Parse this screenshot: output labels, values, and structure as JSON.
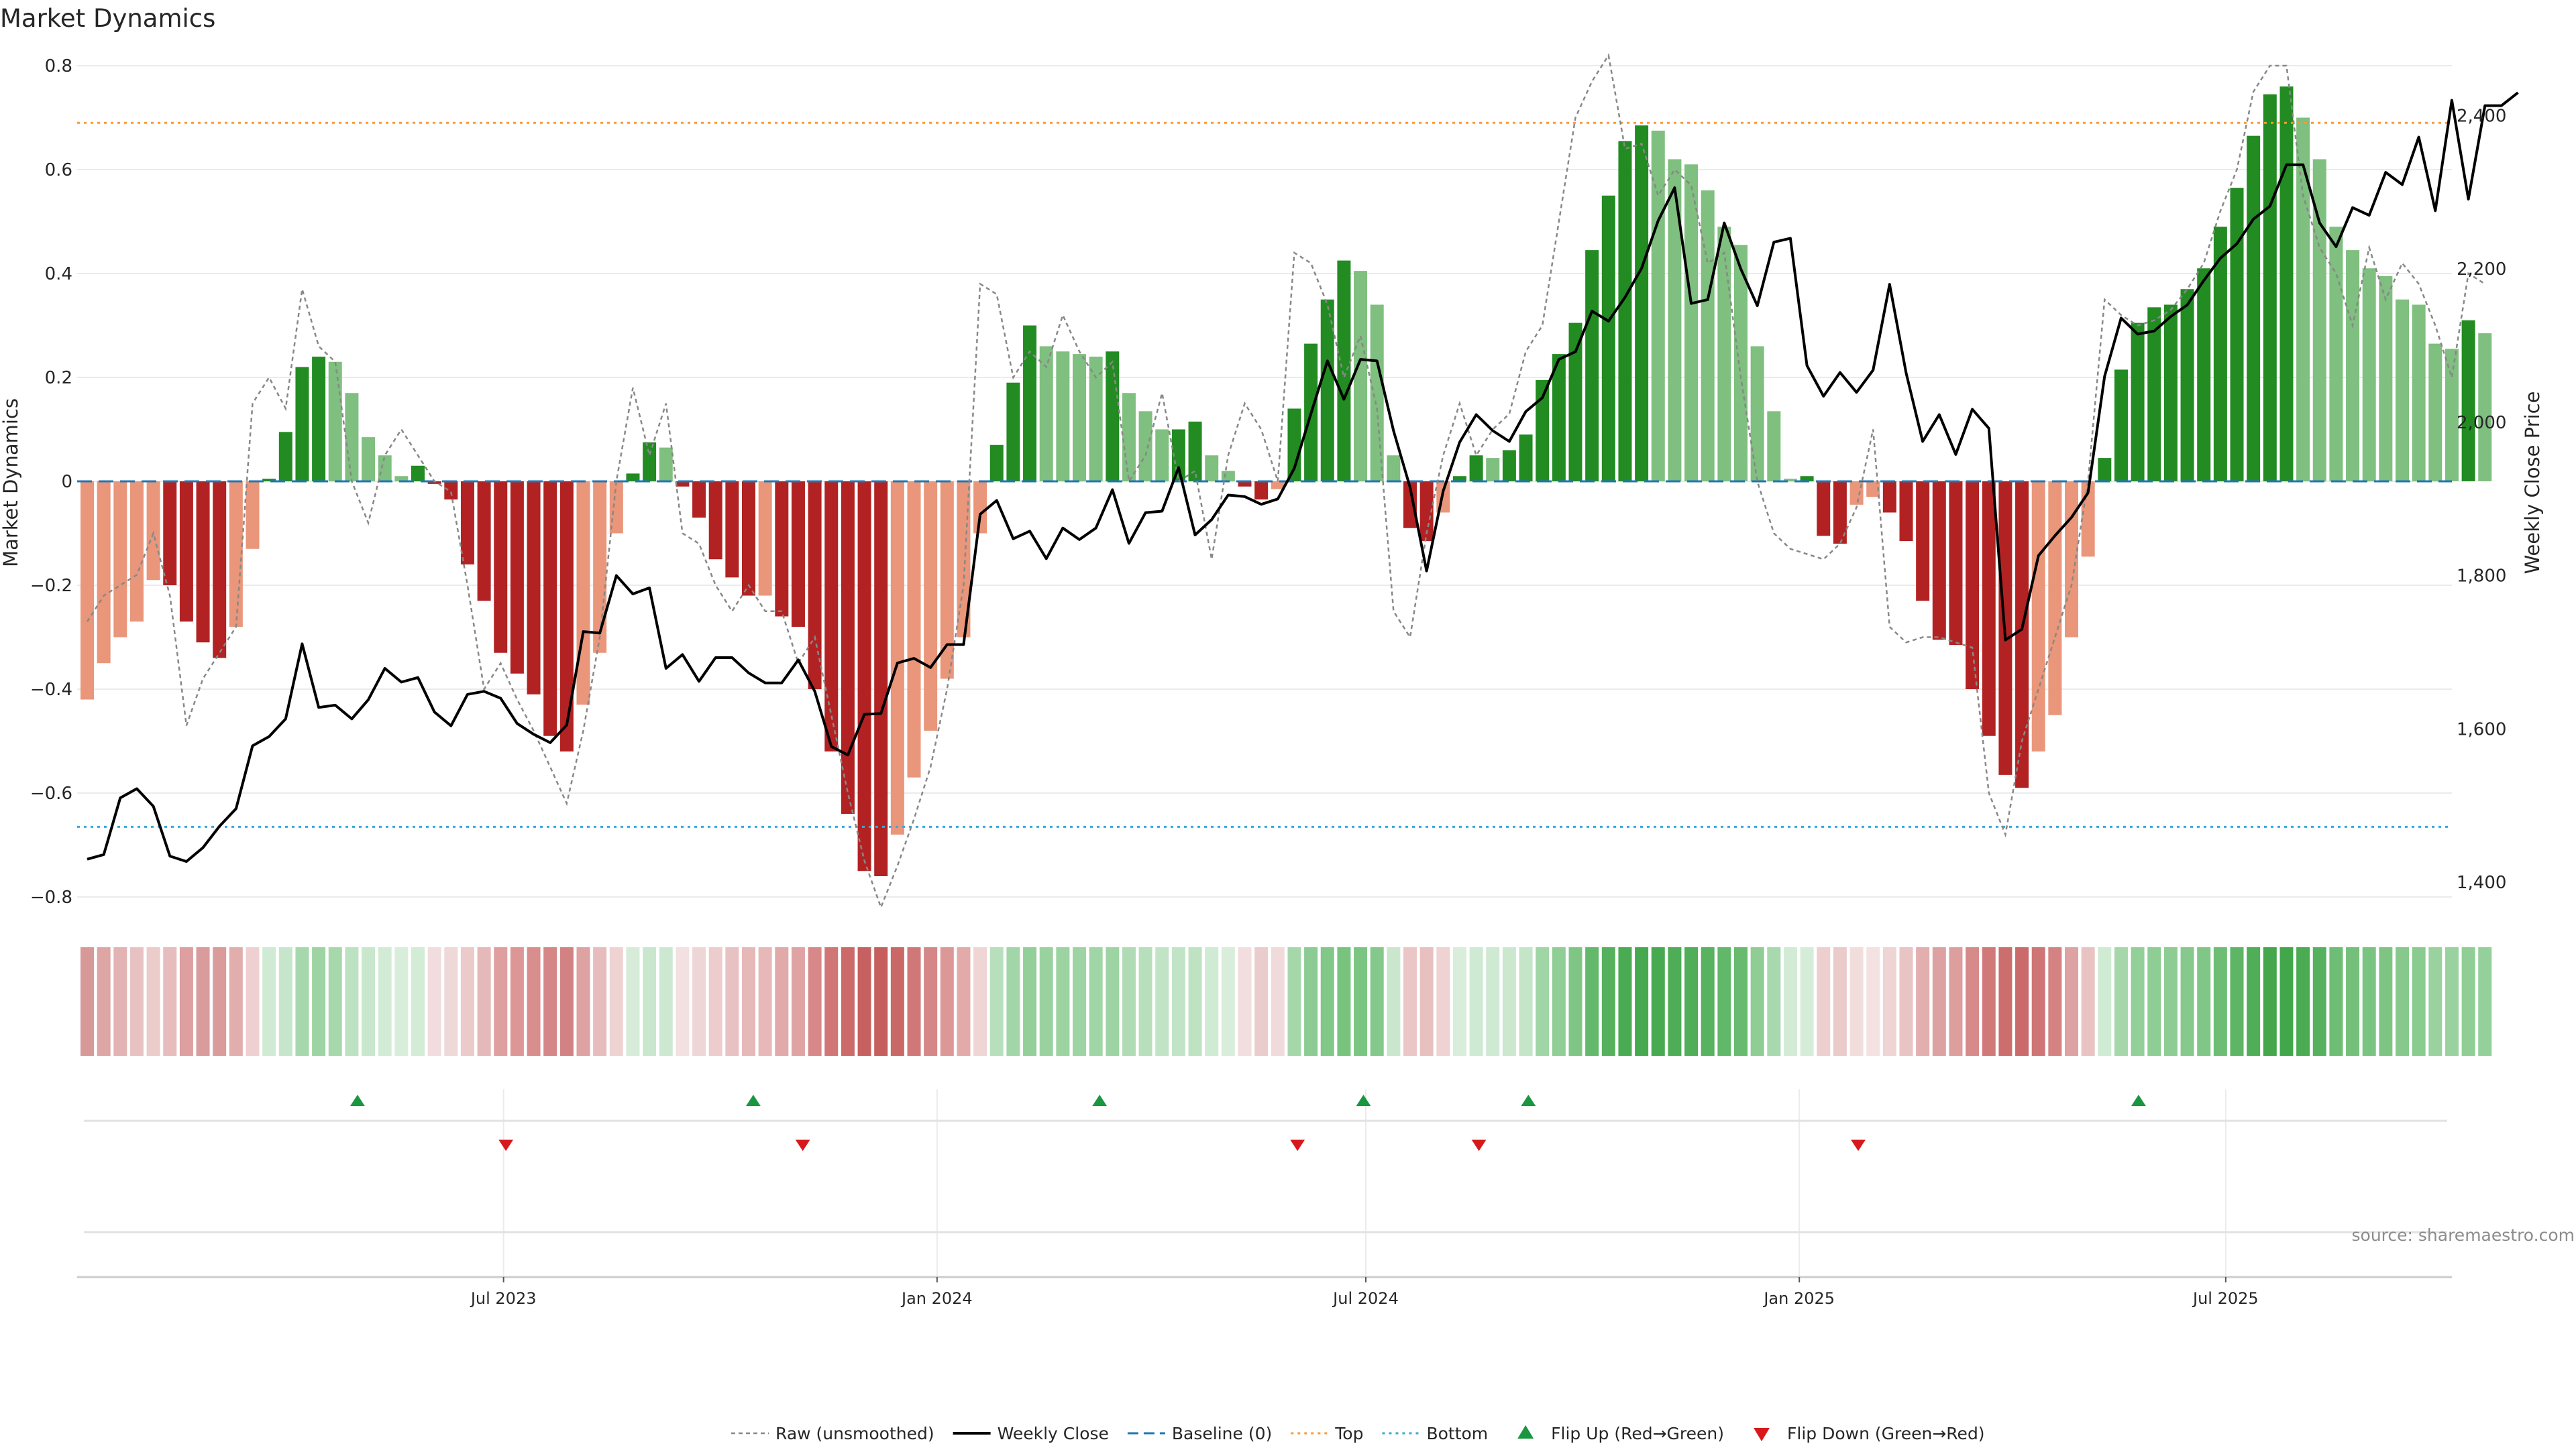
{
  "chart_data": {
    "type": "bar",
    "title": "Market Dynamics",
    "ylabel": "Market Dynamics",
    "y2label": "Weekly Close Price",
    "ylim": [
      -0.83,
      0.83
    ],
    "y2lim": [
      1370,
      2440
    ],
    "yticks": [
      0.8,
      0.6,
      0.4,
      0.2,
      0,
      -0.2,
      -0.4,
      -0.6,
      -0.8
    ],
    "ytick_labels": [
      "0.8",
      "0.6",
      "0.4",
      "0.2",
      "0",
      "−0.2",
      "−0.4",
      "−0.6",
      "−0.8"
    ],
    "y2ticks": [
      2400,
      2200,
      2000,
      1800,
      1600,
      1400
    ],
    "y2tick_labels": [
      "2,400",
      "2,200",
      "2,000",
      "1,800",
      "1,600",
      "1,400"
    ],
    "x_start": "2023-01-01",
    "x_end": "2025-10-05",
    "x_ticks": [
      {
        "date": "2023-07-01",
        "label": "Jul 2023"
      },
      {
        "date": "2024-01-01",
        "label": "Jan 2024"
      },
      {
        "date": "2024-07-01",
        "label": "Jul 2024"
      },
      {
        "date": "2025-01-01",
        "label": "Jan 2025"
      },
      {
        "date": "2025-07-01",
        "label": "Jul 2025"
      }
    ],
    "grid": true,
    "legend_placement": "bottom-center",
    "top_line": 0.69,
    "bottom_line": -0.665,
    "colors": {
      "strong_green": "#228b22",
      "light_green": "#7fbf7f",
      "strong_red": "#b22222",
      "light_red": "#e9967a",
      "weekly_close": "#000000",
      "raw": "#888888",
      "baseline": "#1f77b4",
      "top": "#ff9933",
      "bottom": "#33aadd",
      "flip_up": "#1a9641",
      "flip_down": "#d7191c"
    },
    "values": [
      -0.42,
      -0.35,
      -0.3,
      -0.27,
      -0.19,
      -0.2,
      -0.27,
      -0.31,
      -0.34,
      -0.28,
      -0.13,
      0.005,
      0.095,
      0.22,
      0.24,
      0.23,
      0.17,
      0.085,
      0.05,
      0.01,
      0.03,
      -0.005,
      -0.035,
      -0.16,
      -0.23,
      -0.33,
      -0.37,
      -0.41,
      -0.49,
      -0.52,
      -0.43,
      -0.33,
      -0.1,
      0.015,
      0.075,
      0.065,
      -0.01,
      -0.07,
      -0.15,
      -0.185,
      -0.22,
      -0.22,
      -0.26,
      -0.28,
      -0.4,
      -0.52,
      -0.64,
      -0.75,
      -0.76,
      -0.68,
      -0.57,
      -0.48,
      -0.38,
      -0.3,
      -0.1,
      0.07,
      0.19,
      0.3,
      0.26,
      0.25,
      0.245,
      0.24,
      0.25,
      0.17,
      0.135,
      0.1,
      0.1,
      0.115,
      0.05,
      0.02,
      -0.01,
      -0.035,
      -0.015,
      0.14,
      0.265,
      0.35,
      0.425,
      0.405,
      0.34,
      0.05,
      -0.09,
      -0.115,
      -0.06,
      0.01,
      0.05,
      0.045,
      0.06,
      0.09,
      0.195,
      0.245,
      0.305,
      0.445,
      0.55,
      0.655,
      0.685,
      0.675,
      0.62,
      0.61,
      0.56,
      0.49,
      0.455,
      0.26,
      0.135,
      0.005,
      0.01,
      -0.105,
      -0.12,
      -0.045,
      -0.03,
      -0.06,
      -0.115,
      -0.23,
      -0.305,
      -0.315,
      -0.4,
      -0.49,
      -0.565,
      -0.59,
      -0.52,
      -0.45,
      -0.3,
      -0.145,
      0.045,
      0.215,
      0.305,
      0.335,
      0.34,
      0.37,
      0.41,
      0.49,
      0.565,
      0.665,
      0.745,
      0.76,
      0.7,
      0.62,
      0.49,
      0.445,
      0.41,
      0.395,
      0.35,
      0.34,
      0.265,
      0.255,
      0.31,
      0.285
    ],
    "raw": [
      -0.27,
      -0.22,
      -0.2,
      -0.18,
      -0.1,
      -0.22,
      -0.47,
      -0.38,
      -0.33,
      -0.28,
      0.15,
      0.2,
      0.14,
      0.37,
      0.26,
      0.23,
      0.0,
      -0.08,
      0.05,
      0.1,
      0.05,
      0.0,
      -0.02,
      -0.2,
      -0.4,
      -0.35,
      -0.42,
      -0.48,
      -0.55,
      -0.62,
      -0.48,
      -0.3,
      0.0,
      0.18,
      0.05,
      0.15,
      -0.1,
      -0.12,
      -0.2,
      -0.25,
      -0.2,
      -0.25,
      -0.25,
      -0.35,
      -0.3,
      -0.45,
      -0.6,
      -0.73,
      -0.82,
      -0.74,
      -0.65,
      -0.55,
      -0.4,
      -0.2,
      0.38,
      0.36,
      0.2,
      0.25,
      0.22,
      0.32,
      0.25,
      0.2,
      0.23,
      0.0,
      0.05,
      0.17,
      0.0,
      0.02,
      -0.15,
      0.05,
      0.15,
      0.1,
      0.0,
      0.44,
      0.42,
      0.34,
      0.2,
      0.28,
      0.14,
      -0.25,
      -0.3,
      -0.1,
      0.05,
      0.15,
      0.05,
      0.1,
      0.13,
      0.25,
      0.3,
      0.5,
      0.7,
      0.77,
      0.82,
      0.64,
      0.65,
      0.55,
      0.6,
      0.57,
      0.42,
      0.44,
      0.2,
      0.0,
      -0.1,
      -0.13,
      -0.14,
      -0.15,
      -0.12,
      -0.05,
      0.1,
      -0.28,
      -0.31,
      -0.3,
      -0.3,
      -0.31,
      -0.32,
      -0.6,
      -0.68,
      -0.5,
      -0.4,
      -0.3,
      -0.2,
      0.0,
      0.35,
      0.32,
      0.3,
      0.31,
      0.33,
      0.37,
      0.42,
      0.52,
      0.6,
      0.75,
      0.8,
      0.8,
      0.55,
      0.45,
      0.4,
      0.3,
      0.45,
      0.35,
      0.42,
      0.38,
      0.3,
      0.2,
      0.4,
      0.38
    ],
    "weekly_close": [
      1430,
      1436,
      1510,
      1522,
      1499,
      1434,
      1427,
      1445,
      1473,
      1496,
      1578,
      1590,
      1613,
      1711,
      1628,
      1631,
      1613,
      1638,
      1679,
      1661,
      1667,
      1622,
      1604,
      1645,
      1649,
      1640,
      1607,
      1593,
      1582,
      1605,
      1727,
      1725,
      1800,
      1776,
      1784,
      1679,
      1697,
      1662,
      1693,
      1693,
      1673,
      1660,
      1660,
      1690,
      1649,
      1577,
      1566,
      1619,
      1620,
      1686,
      1692,
      1680,
      1710,
      1710,
      1880,
      1898,
      1848,
      1858,
      1822,
      1862,
      1847,
      1862,
      1912,
      1842,
      1882,
      1884,
      1941,
      1853,
      1873,
      1905,
      1903,
      1893,
      1900,
      1940,
      2011,
      2080,
      2030,
      2082,
      2080,
      1989,
      1915,
      1806,
      1910,
      1974,
      2010,
      1989,
      1975,
      2014,
      2032,
      2082,
      2092,
      2145,
      2132,
      2163,
      2201,
      2263,
      2306,
      2155,
      2160,
      2260,
      2200,
      2152,
      2235,
      2240,
      2074,
      2034,
      2065,
      2039,
      2068,
      2180,
      2064,
      1975,
      2010,
      1958,
      2017,
      1992,
      1716,
      1730,
      1826,
      1852,
      1876,
      1908,
      2060,
      2136,
      2115,
      2119,
      2138,
      2153,
      2185,
      2214,
      2233,
      2265,
      2282,
      2336,
      2336,
      2260,
      2229,
      2280,
      2270,
      2326,
      2310,
      2372,
      2276,
      2420,
      2291,
      2413,
      2413,
      2430
    ],
    "heat_colors": [
      "#d79898",
      "#dea5a5",
      "#e3b3b3",
      "#e8c2c2",
      "#eccbcb",
      "#e6bcbc",
      "#dd9f9f",
      "#d99b9b",
      "#da9b9b",
      "#e1adad",
      "#efd0d0",
      "#d0ebd3",
      "#c5e6ca",
      "#a7d8ad",
      "#9ed4a4",
      "#a6d8ac",
      "#bde2c1",
      "#c8e7cc",
      "#d2ebd5",
      "#d8eedb",
      "#d3ecd6",
      "#f1dddd",
      "#efd8d8",
      "#ebcaca",
      "#e5b9b9",
      "#df9f9f",
      "#dc9696",
      "#d98e8e",
      "#d58686",
      "#d28282",
      "#dfa2a2",
      "#e7bcbc",
      "#efd3d3",
      "#d6ecd8",
      "#c9e7cd",
      "#cce8d0",
      "#f3e1e1",
      "#efd6d6",
      "#eccccc",
      "#e8c2c2",
      "#e6b8b8",
      "#e6b8b8",
      "#e1a9a9",
      "#dfa3a3",
      "#d88888",
      "#d17676",
      "#cc6a6a",
      "#c76060",
      "#c65e5e",
      "#ca6868",
      "#d07777",
      "#d58686",
      "#dc9797",
      "#e3aaaa",
      "#f0d5d5",
      "#b7dfbc",
      "#a2d6a8",
      "#93cf99",
      "#9ad29f",
      "#9cd3a1",
      "#9ed4a3",
      "#a0d5a5",
      "#9ed4a3",
      "#b0dbb4",
      "#b8dfbc",
      "#c2e4c6",
      "#c2e4c6",
      "#bee2c2",
      "#d0ebd3",
      "#d8eedb",
      "#f2dede",
      "#ebcccc",
      "#f0dada",
      "#a6d7ab",
      "#8ccb93",
      "#81c788",
      "#78c47f",
      "#7bc582",
      "#85c88b",
      "#cae7ce",
      "#ebc6c6",
      "#e8c0c0",
      "#efd2d2",
      "#d8eedb",
      "#ceead2",
      "#cfead3",
      "#cbe8cf",
      "#c4e5c8",
      "#a0d5a5",
      "#90ce96",
      "#7fc686",
      "#63b86b",
      "#55b15d",
      "#4aab52",
      "#47a94f",
      "#48aa50",
      "#4ead56",
      "#50ae58",
      "#58b260",
      "#62b86a",
      "#67ba6e",
      "#8fcd95",
      "#a8d8ad",
      "#d2ebd5",
      "#d5edd8",
      "#eecfcf",
      "#ebcaca",
      "#f2dddd",
      "#f4e2e2",
      "#efd4d4",
      "#e9c4c4",
      "#e3aeae",
      "#dea1a1",
      "#dd9e9e",
      "#d68a8a",
      "#d17979",
      "#cd6e6e",
      "#cb6a6a",
      "#cf7575",
      "#d48282",
      "#dfa2a2",
      "#e9c2c2",
      "#d0ebd3",
      "#a5d7aa",
      "#93cf99",
      "#8ecd94",
      "#8dcc93",
      "#87c98d",
      "#80c687",
      "#6dbd74",
      "#5db565",
      "#4fae57",
      "#44a74c",
      "#42a64a",
      "#4aab52",
      "#56b15e",
      "#6dbd74",
      "#74c07b",
      "#7ac482",
      "#7ec584",
      "#87c98d",
      "#8acb90",
      "#99d29e",
      "#9ad29f",
      "#90ce96",
      "#94d09a"
    ],
    "flip_up_dates": [
      "2023-04-30",
      "2023-10-15",
      "2024-03-10",
      "2024-06-30",
      "2024-09-08",
      "2025-05-25"
    ],
    "flip_down_dates": [
      "2023-07-02",
      "2023-11-05",
      "2024-06-02",
      "2024-08-18",
      "2025-01-26"
    ]
  },
  "legend": [
    {
      "key": "raw",
      "label": "Raw (unsmoothed)"
    },
    {
      "key": "close",
      "label": "Weekly Close"
    },
    {
      "key": "baseline",
      "label": "Baseline (0)"
    },
    {
      "key": "top",
      "label": "Top"
    },
    {
      "key": "bottom",
      "label": "Bottom"
    },
    {
      "key": "flip_up",
      "label": "Flip Up (Red→Green)"
    },
    {
      "key": "flip_down",
      "label": "Flip Down (Green→Red)"
    }
  ],
  "source": "source: sharemaestro.com"
}
